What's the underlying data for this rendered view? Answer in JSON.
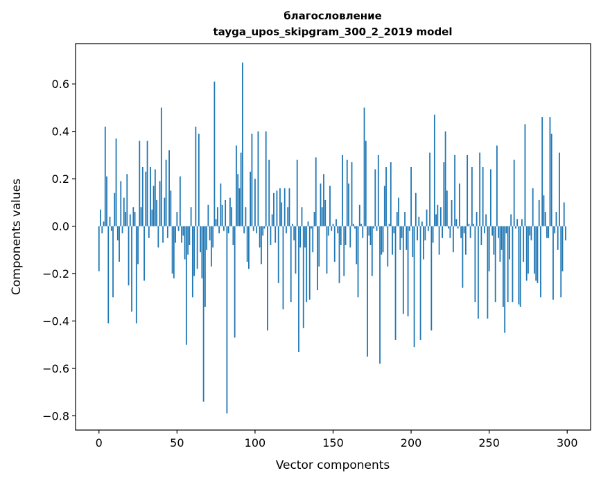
{
  "chart_data": {
    "type": "bar",
    "title": "благословление",
    "subtitle": "tayga_upos_skipgram_300_2_2019 model",
    "xlabel": "Vector components",
    "ylabel": "Components values",
    "xlim": [
      -15,
      315
    ],
    "ylim": [
      -0.86,
      0.77
    ],
    "xticks": [
      0,
      50,
      100,
      150,
      200,
      250,
      300
    ],
    "yticks": [
      -0.8,
      -0.6,
      -0.4,
      -0.2,
      0.0,
      0.2,
      0.4,
      0.6
    ],
    "ytick_labels": [
      "−0.8",
      "−0.6",
      "−0.4",
      "−0.2",
      "0.0",
      "0.2",
      "0.4",
      "0.6"
    ],
    "xtick_labels": [
      "0",
      "50",
      "100",
      "150",
      "200",
      "250",
      "300"
    ],
    "bar_color": "#1f77b4",
    "grid": false,
    "series": [
      {
        "name": "components",
        "values": [
          -0.19,
          0.07,
          -0.03,
          0.02,
          0.42,
          0.21,
          -0.41,
          0.04,
          -0.02,
          -0.3,
          0.14,
          0.37,
          -0.06,
          -0.15,
          0.19,
          -0.03,
          0.12,
          0.06,
          0.22,
          -0.25,
          0.05,
          -0.36,
          0.08,
          0.06,
          -0.41,
          -0.16,
          0.36,
          0.08,
          0.25,
          -0.23,
          0.23,
          0.36,
          -0.05,
          0.25,
          0.07,
          0.17,
          0.24,
          0.11,
          -0.09,
          0.19,
          0.5,
          -0.07,
          0.12,
          0.28,
          -0.05,
          0.32,
          0.15,
          -0.2,
          -0.22,
          -0.07,
          0.06,
          -0.02,
          0.21,
          -0.07,
          -0.04,
          -0.14,
          -0.5,
          -0.12,
          -0.08,
          0.08,
          -0.3,
          -0.21,
          0.42,
          -0.18,
          0.39,
          -0.11,
          -0.22,
          -0.74,
          -0.34,
          -0.1,
          0.09,
          -0.06,
          -0.17,
          -0.09,
          0.61,
          0.03,
          0.08,
          -0.03,
          0.18,
          0.09,
          -0.02,
          0.11,
          -0.79,
          -0.03,
          0.12,
          0.08,
          -0.08,
          -0.47,
          0.34,
          0.22,
          0.16,
          0.31,
          0.69,
          -0.03,
          0.08,
          -0.15,
          -0.18,
          0.23,
          0.39,
          -0.02,
          0.2,
          -0.03,
          0.4,
          -0.09,
          -0.16,
          -0.04,
          -0.01,
          0.4,
          -0.44,
          0.28,
          -0.08,
          0.05,
          0.14,
          -0.07,
          0.15,
          -0.24,
          0.16,
          0.1,
          -0.35,
          0.16,
          -0.03,
          0.08,
          0.16,
          -0.32,
          0.01,
          -0.06,
          -0.2,
          0.28,
          -0.53,
          -0.09,
          0.08,
          -0.43,
          -0.09,
          -0.32,
          0.02,
          -0.31,
          -0.01,
          -0.11,
          0.06,
          0.29,
          -0.27,
          -0.17,
          0.18,
          0.08,
          0.22,
          0.11,
          -0.2,
          -0.04,
          0.17,
          -0.02,
          0.01,
          -0.15,
          0.03,
          -0.03,
          -0.24,
          -0.08,
          0.3,
          -0.21,
          -0.08,
          0.28,
          0.18,
          -0.09,
          0.27,
          0.01,
          -0.01,
          -0.16,
          -0.3,
          0.09,
          0.01,
          -0.05,
          0.5,
          0.36,
          -0.55,
          -0.04,
          -0.08,
          -0.21,
          -0.01,
          0.24,
          -0.02,
          0.3,
          -0.58,
          -0.12,
          -0.11,
          0.17,
          0.25,
          -0.17,
          0.01,
          0.27,
          -0.12,
          -0.03,
          -0.48,
          0.06,
          0.12,
          -0.1,
          -0.05,
          -0.37,
          0.06,
          -0.1,
          -0.38,
          -0.02,
          0.25,
          -0.13,
          -0.51,
          0.14,
          -0.06,
          0.04,
          -0.48,
          0.02,
          -0.14,
          -0.06,
          0.07,
          -0.02,
          0.31,
          -0.44,
          -0.07,
          0.47,
          0.05,
          0.09,
          -0.12,
          0.08,
          -0.05,
          0.27,
          0.4,
          0.15,
          -0.01,
          -0.05,
          0.11,
          -0.11,
          0.3,
          0.03,
          -0.01,
          0.18,
          -0.05,
          -0.26,
          -0.03,
          -0.12,
          0.3,
          0.01,
          -0.05,
          0.25,
          0.01,
          -0.32,
          0.06,
          -0.39,
          0.31,
          -0.08,
          0.25,
          -0.03,
          0.05,
          -0.39,
          -0.19,
          0.24,
          -0.04,
          -0.12,
          -0.32,
          0.34,
          -0.05,
          -0.15,
          -0.1,
          -0.34,
          -0.45,
          -0.03,
          -0.32,
          -0.14,
          0.05,
          -0.32,
          0.28,
          -0.01,
          0.03,
          -0.33,
          -0.34,
          0.03,
          -0.15,
          0.43,
          -0.23,
          -0.2,
          -0.04,
          -0.06,
          0.16,
          -0.2,
          -0.23,
          -0.24,
          0.11,
          -0.3,
          0.46,
          0.13,
          0.06,
          -0.05,
          -0.05,
          0.46,
          0.39,
          -0.31,
          -0.03,
          0.06,
          -0.1,
          0.31,
          -0.3,
          -0.19,
          0.1,
          -0.06
        ]
      }
    ]
  }
}
